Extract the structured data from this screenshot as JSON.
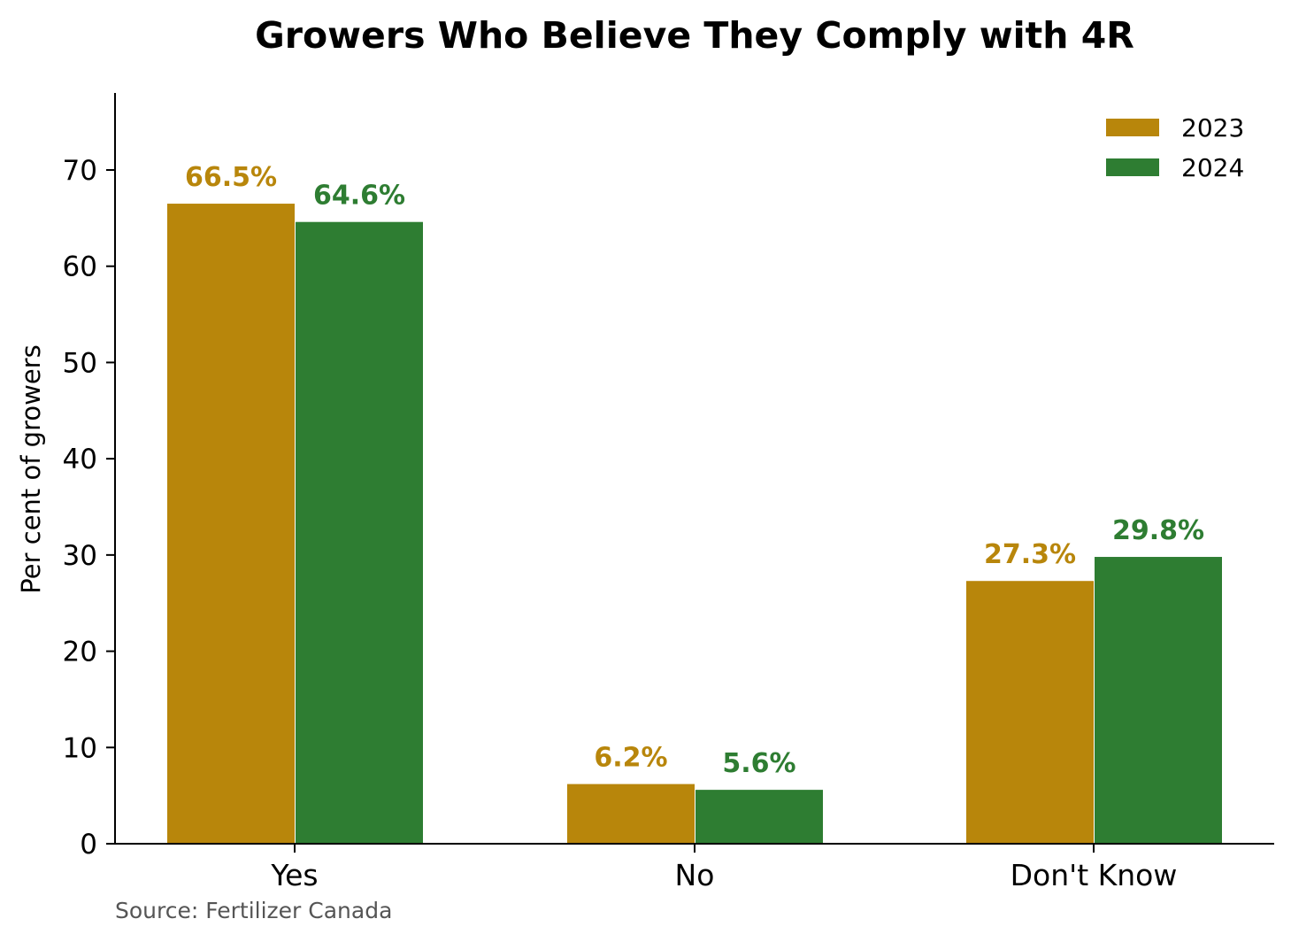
{
  "chart_data": {
    "type": "bar",
    "title": "Growers Who Believe They Comply with 4R",
    "xlabel": "",
    "ylabel": "Per cent of growers",
    "categories": [
      "Yes",
      "No",
      "Don't Know"
    ],
    "series": [
      {
        "name": "2023",
        "color": "#B8860B",
        "values": [
          66.5,
          6.2,
          27.3
        ],
        "labels": [
          "66.5%",
          "6.2%",
          "27.3%"
        ]
      },
      {
        "name": "2024",
        "color": "#2E7D32",
        "values": [
          64.6,
          5.6,
          29.8
        ],
        "labels": [
          "64.6%",
          "5.6%",
          "29.8%"
        ]
      }
    ],
    "ylim": [
      0,
      78
    ],
    "yticks": [
      0,
      10,
      20,
      30,
      40,
      50,
      60,
      70
    ],
    "grid": false,
    "legend_position": "upper right",
    "source": "Source: Fertilizer Canada"
  }
}
